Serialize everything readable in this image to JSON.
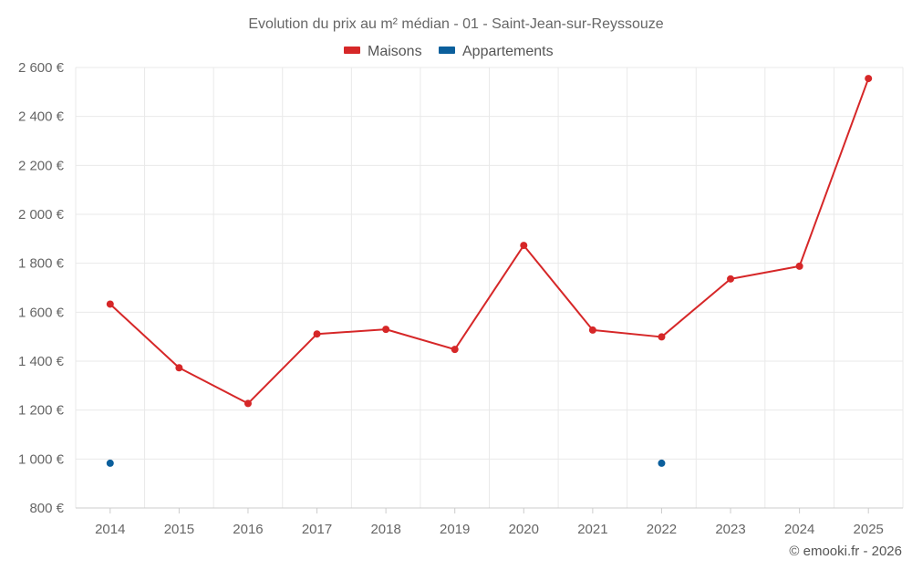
{
  "chart_data": {
    "type": "line",
    "title": "Evolution du prix au m² médian - 01 - Saint-Jean-sur-Reyssouze",
    "categories": [
      "2014",
      "2015",
      "2016",
      "2017",
      "2018",
      "2019",
      "2020",
      "2021",
      "2022",
      "2023",
      "2024",
      "2025"
    ],
    "ylim": [
      800,
      2600
    ],
    "yticks": [
      800,
      1000,
      1200,
      1400,
      1600,
      1800,
      2000,
      2200,
      2400,
      2600
    ],
    "ytick_labels": [
      "800 €",
      "1 000 €",
      "1 200 €",
      "1 400 €",
      "1 600 €",
      "1 800 €",
      "2 000 €",
      "2 200 €",
      "2 400 €",
      "2 600 €"
    ],
    "grid": true,
    "legend_position": "top-center",
    "series": [
      {
        "name": "Maisons",
        "color": "#d62728",
        "line": true,
        "values": [
          1633,
          1373,
          1227,
          1511,
          1530,
          1448,
          1873,
          1527,
          1499,
          1736,
          1788,
          2555
        ]
      },
      {
        "name": "Appartements",
        "color": "#0b5f9c",
        "line": false,
        "values": [
          983,
          null,
          null,
          null,
          null,
          null,
          null,
          null,
          983,
          null,
          null,
          null
        ]
      }
    ]
  },
  "credit": "© emooki.fr - 2026"
}
